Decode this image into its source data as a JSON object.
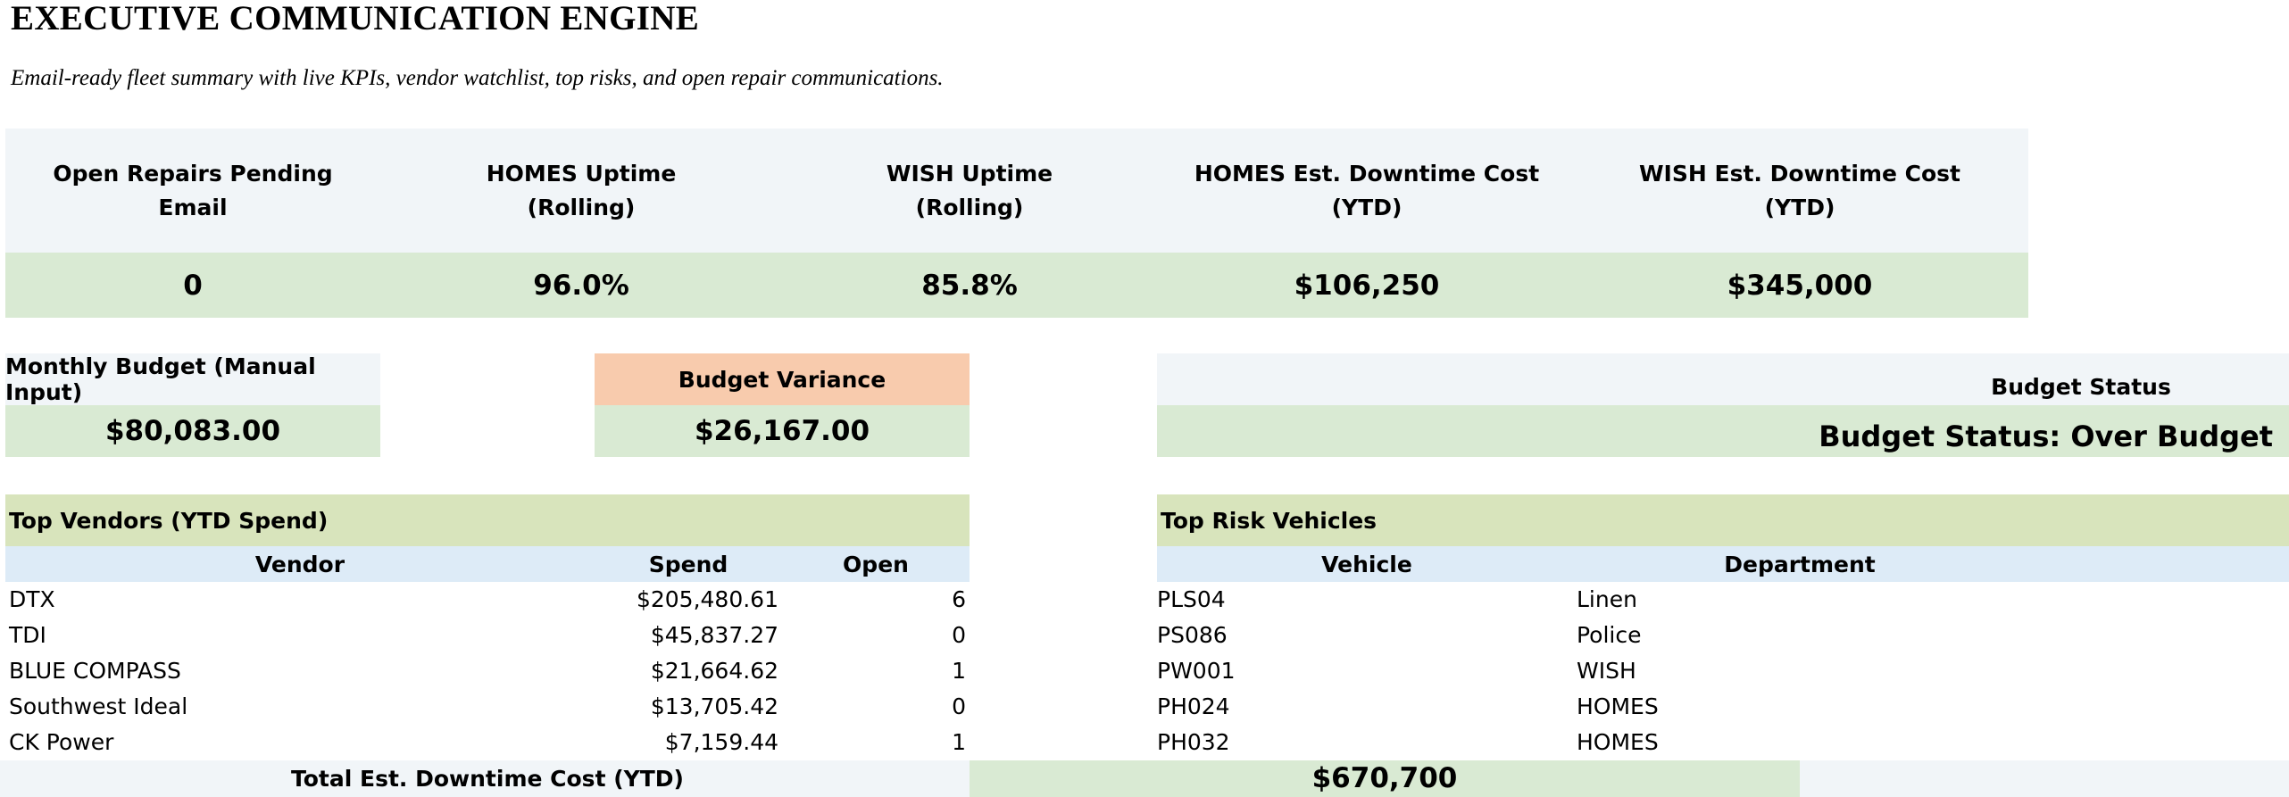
{
  "header": {
    "title": "EXECUTIVE COMMUNICATION ENGINE",
    "subtitle": "Email-ready fleet summary with live KPIs, vendor watchlist, top risks, and open repair communications."
  },
  "kpis": [
    {
      "label_line1": "Open Repairs Pending",
      "label_line2": "Email",
      "value": "0"
    },
    {
      "label_line1": "HOMES Uptime",
      "label_line2": "(Rolling)",
      "value": "96.0%"
    },
    {
      "label_line1": "WISH Uptime",
      "label_line2": "(Rolling)",
      "value": "85.8%"
    },
    {
      "label_line1": "HOMES Est. Downtime Cost",
      "label_line2": "(YTD)",
      "value": "$106,250"
    },
    {
      "label_line1": "WISH Est. Downtime Cost",
      "label_line2": "(YTD)",
      "value": "$345,000"
    }
  ],
  "budget": {
    "monthly_label": "Monthly Budget (Manual Input)",
    "monthly_value": "$80,083.00",
    "variance_label": "Budget Variance",
    "variance_value": "$26,167.00",
    "status_label": "Budget Status",
    "status_value": "Budget Status: Over Budget"
  },
  "vendors": {
    "title": "Top Vendors (YTD Spend)",
    "columns": {
      "vendor": "Vendor",
      "spend": "Spend",
      "open": "Open"
    },
    "rows": [
      {
        "vendor": "DTX",
        "spend": "$205,480.61",
        "open": "6"
      },
      {
        "vendor": "TDI",
        "spend": "$45,837.27",
        "open": "0"
      },
      {
        "vendor": "BLUE COMPASS",
        "spend": "$21,664.62",
        "open": "1"
      },
      {
        "vendor": "Southwest Ideal",
        "spend": "$13,705.42",
        "open": "0"
      },
      {
        "vendor": "CK Power",
        "spend": "$7,159.44",
        "open": "1"
      }
    ]
  },
  "risks": {
    "title": "Top Risk Vehicles",
    "columns": {
      "vehicle": "Vehicle",
      "department": "Department"
    },
    "rows": [
      {
        "vehicle": "PLS04",
        "department": "Linen"
      },
      {
        "vehicle": "PS086",
        "department": "Police"
      },
      {
        "vehicle": "PW001",
        "department": "WISH"
      },
      {
        "vehicle": "PH024",
        "department": "HOMES"
      },
      {
        "vehicle": "PH032",
        "department": "HOMES"
      }
    ]
  },
  "total": {
    "label": "Total Est. Downtime Cost (YTD)",
    "value": "$670,700"
  },
  "colors": {
    "label_bg": "#f1f5f8",
    "value_bg": "#d9ead3",
    "variance_header_bg": "#f8cbad",
    "section_header_bg": "#d8e4bc",
    "column_header_bg": "#ddebf7"
  }
}
